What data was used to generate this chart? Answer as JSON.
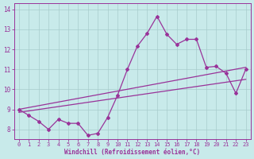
{
  "x": [
    0,
    1,
    2,
    3,
    4,
    5,
    6,
    7,
    8,
    9,
    10,
    11,
    12,
    13,
    14,
    15,
    16,
    17,
    18,
    19,
    20,
    21,
    22,
    23
  ],
  "y_curve": [
    9.0,
    8.7,
    8.4,
    8.0,
    8.5,
    8.3,
    8.3,
    7.7,
    7.8,
    8.6,
    9.7,
    11.0,
    12.15,
    12.8,
    13.65,
    12.75,
    12.25,
    12.5,
    12.5,
    11.1,
    11.15,
    10.8,
    9.8,
    11.0
  ],
  "trend1_x": [
    0,
    23
  ],
  "trend1_y": [
    9.0,
    11.1
  ],
  "trend2_x": [
    0,
    23
  ],
  "trend2_y": [
    8.85,
    10.5
  ],
  "line_color": "#993399",
  "bg_color": "#c8eaea",
  "grid_color": "#a8cccc",
  "xlabel": "Windchill (Refroidissement éolien,°C)",
  "yticks": [
    8,
    9,
    10,
    11,
    12,
    13,
    14
  ],
  "xticks": [
    0,
    1,
    2,
    3,
    4,
    5,
    6,
    7,
    8,
    9,
    10,
    11,
    12,
    13,
    14,
    15,
    16,
    17,
    18,
    19,
    20,
    21,
    22,
    23
  ],
  "ylim": [
    7.5,
    14.3
  ],
  "xlim": [
    -0.5,
    23.5
  ],
  "tick_fontsize": 5.0,
  "label_fontsize": 5.5
}
